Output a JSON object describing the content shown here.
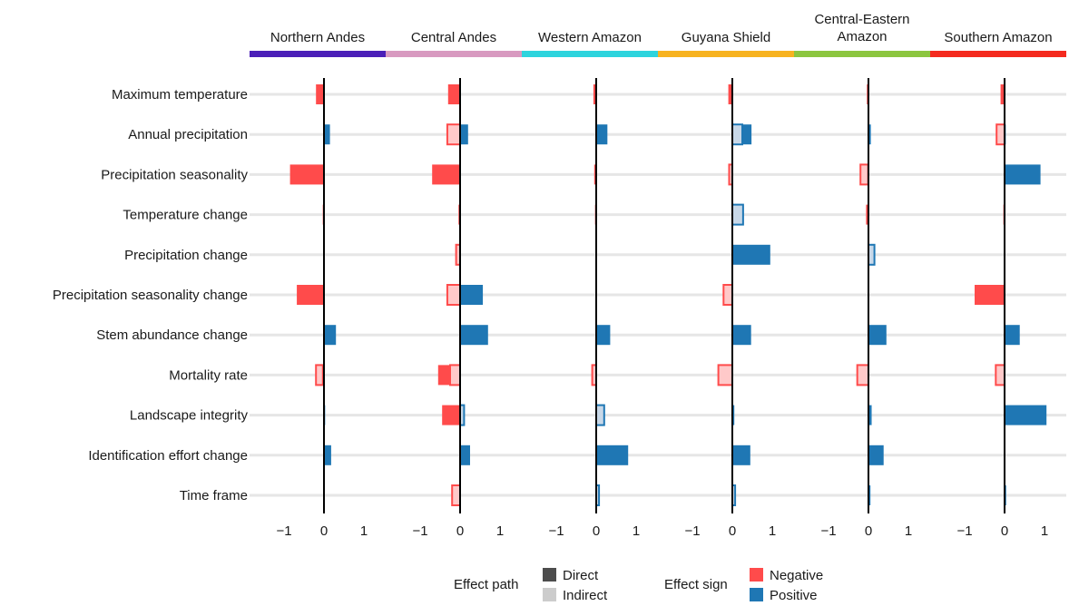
{
  "chart_data": {
    "type": "bar",
    "orientation": "horizontal",
    "panels": [
      {
        "name": "Northern Andes",
        "color": "#4B1FB8"
      },
      {
        "name": "Central Andes",
        "color": "#D89AC0"
      },
      {
        "name": "Western Amazon",
        "color": "#2DD4DD"
      },
      {
        "name": "Guyana Shield",
        "color": "#F7B320"
      },
      {
        "name": "Central-Eastern\nAmazon",
        "color": "#8CC63F"
      },
      {
        "name": "Southern Amazon",
        "color": "#F42A1E"
      }
    ],
    "categories": [
      "Maximum temperature",
      "Annual precipitation",
      "Precipitation seasonality",
      "Temperature change",
      "Precipitation change",
      "Precipitation seasonality change",
      "Stem abundance change",
      "Mortality rate",
      "Landscape integrity",
      "Identification effort change",
      "Time frame"
    ],
    "x_ticks": [
      "−1",
      "0",
      "1"
    ],
    "x_tick_values": [
      -1,
      0,
      1
    ],
    "xlim": [
      -1.45,
      1.55
    ],
    "colors": {
      "negative_direct": "#FF4B4B",
      "negative_indirect": "#FFC9C9",
      "positive_direct": "#1F77B4",
      "positive_indirect": "#C8D8E8",
      "grid": "#E6E6E6",
      "zero_line": "#000000"
    },
    "series": [
      {
        "name": "Direct",
        "panels": [
          [
            -0.2,
            0.15,
            -0.85,
            -0.03,
            0,
            -0.68,
            0.3,
            -0.05,
            0.03,
            0.18,
            0.02
          ],
          [
            -0.3,
            0.2,
            -0.7,
            -0.04,
            0,
            0.57,
            0.7,
            -0.55,
            -0.45,
            0.25,
            0
          ],
          [
            -0.07,
            0.28,
            -0.05,
            -0.03,
            0,
            0,
            0.35,
            0,
            0,
            0.8,
            0
          ],
          [
            -0.1,
            0.48,
            0,
            0,
            0.95,
            0,
            0.47,
            0,
            0.05,
            0.45,
            0
          ],
          [
            -0.04,
            0.06,
            -0.03,
            -0.06,
            0,
            0,
            0.45,
            0,
            0.08,
            0.38,
            0.05
          ],
          [
            -0.1,
            0.03,
            0.9,
            -0.03,
            0,
            -0.75,
            0.38,
            0,
            1.05,
            0,
            0.04
          ]
        ]
      },
      {
        "name": "Indirect",
        "panels": [
          [
            0,
            0,
            0,
            0,
            0,
            0,
            0,
            -0.2,
            0,
            0,
            0
          ],
          [
            0,
            -0.32,
            0,
            0,
            -0.1,
            -0.32,
            0,
            -0.25,
            0.1,
            0,
            -0.2
          ],
          [
            0,
            0,
            0,
            0,
            0,
            0,
            0,
            -0.1,
            0.2,
            0,
            0.07
          ],
          [
            0,
            0.25,
            -0.08,
            0.27,
            0,
            -0.22,
            0,
            -0.35,
            0,
            0,
            0.07
          ],
          [
            0,
            0,
            -0.2,
            0,
            0.15,
            0,
            0,
            -0.28,
            0,
            0,
            0
          ],
          [
            0,
            -0.2,
            0,
            0,
            0,
            0,
            0,
            -0.22,
            0,
            0,
            0
          ]
        ]
      }
    ]
  },
  "legend": {
    "path_title": "Effect path",
    "path_items": [
      {
        "label": "Direct",
        "color": "#4D4D4D"
      },
      {
        "label": "Indirect",
        "color": "#CCCCCC"
      }
    ],
    "sign_title": "Effect sign",
    "sign_items": [
      {
        "label": "Negative",
        "color": "#FF4B4B"
      },
      {
        "label": "Positive",
        "color": "#1F77B4"
      }
    ]
  }
}
